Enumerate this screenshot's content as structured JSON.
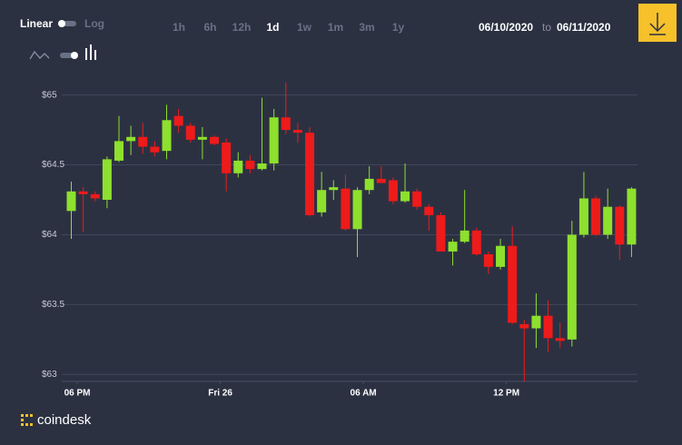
{
  "toolbar": {
    "scale_options": [
      "Linear",
      "Log"
    ],
    "active_scale": "Linear",
    "ranges": [
      "1h",
      "6h",
      "12h",
      "1d",
      "1w",
      "1m",
      "3m",
      "1y"
    ],
    "active_range": "1d",
    "date_from": "06/10/2020",
    "date_separator": "to",
    "date_to": "06/11/2020"
  },
  "brand": "coindesk",
  "chart_data": {
    "type": "candlestick",
    "up_color": "#8ee02e",
    "down_color": "#ee1b1b",
    "grid": true,
    "ylim": [
      62.95,
      65.16
    ],
    "yticks": [
      {
        "value": 65,
        "label": "$65"
      },
      {
        "value": 64.5,
        "label": "$64.5"
      },
      {
        "value": 64,
        "label": "$64"
      },
      {
        "value": 63.5,
        "label": "$63.5"
      },
      {
        "value": 63,
        "label": "$63"
      }
    ],
    "xlim": [
      -0.8,
      47.5
    ],
    "xticks": [
      {
        "value": 0.5,
        "label": "06 PM"
      },
      {
        "value": 12.5,
        "label": "Fri 26"
      },
      {
        "value": 24.5,
        "label": "06 AM"
      },
      {
        "value": 36.5,
        "label": "12 PM"
      }
    ],
    "open": [
      64.17,
      64.31,
      64.29,
      64.25,
      64.53,
      64.67,
      64.7,
      64.63,
      64.6,
      64.85,
      64.78,
      64.68,
      64.7,
      64.66,
      64.44,
      64.53,
      64.47,
      64.51,
      64.84,
      64.75,
      64.73,
      64.16,
      64.32,
      64.33,
      64.04,
      64.32,
      64.4,
      64.39,
      64.24,
      64.31,
      64.2,
      64.14,
      63.88,
      63.95,
      64.03,
      63.86,
      63.77,
      63.92,
      63.36,
      63.33,
      63.42,
      63.26,
      63.25,
      64.0,
      64.26,
      64.0,
      64.2,
      63.93
    ],
    "high": [
      64.38,
      64.34,
      64.31,
      64.56,
      64.85,
      64.78,
      64.8,
      64.67,
      64.93,
      64.9,
      64.8,
      64.77,
      64.71,
      64.69,
      64.59,
      64.57,
      64.98,
      64.9,
      65.09,
      64.8,
      64.77,
      64.45,
      64.39,
      64.43,
      64.34,
      64.49,
      64.49,
      64.41,
      64.51,
      64.33,
      64.22,
      64.16,
      63.97,
      64.32,
      64.05,
      63.88,
      63.97,
      64.06,
      63.39,
      63.58,
      63.53,
      63.37,
      64.1,
      64.45,
      64.28,
      64.33,
      64.21,
      64.34
    ],
    "low": [
      63.97,
      64.02,
      64.24,
      64.19,
      64.52,
      64.57,
      64.58,
      64.56,
      64.54,
      64.73,
      64.66,
      64.54,
      64.64,
      64.31,
      64.41,
      64.44,
      64.46,
      64.46,
      64.72,
      64.66,
      64.13,
      64.13,
      64.25,
      64.03,
      63.84,
      64.29,
      64.37,
      64.22,
      64.23,
      64.18,
      64.03,
      63.88,
      63.78,
      63.94,
      63.85,
      63.72,
      63.75,
      63.36,
      62.95,
      63.19,
      63.16,
      63.19,
      63.2,
      63.98,
      63.99,
      63.97,
      63.82,
      63.84
    ],
    "close": [
      64.31,
      64.29,
      64.26,
      64.54,
      64.67,
      64.7,
      64.63,
      64.59,
      64.82,
      64.78,
      64.68,
      64.7,
      64.65,
      64.44,
      64.53,
      64.47,
      64.51,
      64.84,
      64.75,
      64.73,
      64.14,
      64.32,
      64.34,
      64.04,
      64.32,
      64.4,
      64.37,
      64.24,
      64.31,
      64.2,
      64.14,
      63.88,
      63.95,
      64.03,
      63.86,
      63.77,
      63.92,
      63.37,
      63.33,
      63.42,
      63.26,
      63.24,
      64.0,
      64.26,
      64.0,
      64.2,
      63.93,
      64.33
    ]
  }
}
